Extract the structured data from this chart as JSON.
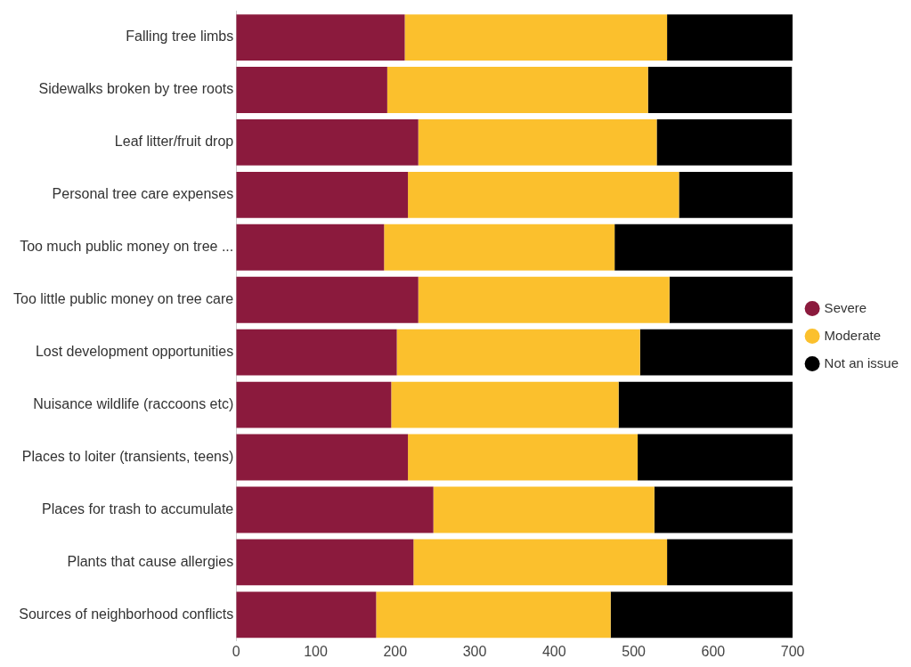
{
  "chart_data": {
    "type": "bar",
    "orientation": "horizontal",
    "stacked": true,
    "categories": [
      "Falling tree limbs",
      "Sidewalks broken by tree roots",
      "Leaf litter/fruit drop",
      "Personal tree care expenses",
      "Too much public money on tree ...",
      "Too little public money on tree care",
      "Lost development opportunities",
      "Nuisance wildlife (raccoons etc)",
      "Places to loiter (transients, teens)",
      "Places for trash to accumulate",
      "Plants that cause allergies",
      "Sources of neighborhood conflicts"
    ],
    "series": [
      {
        "name": "Severe",
        "color": "#8b1a3d",
        "values": [
          212,
          190,
          229,
          216,
          186,
          229,
          202,
          195,
          216,
          248,
          223,
          176
        ]
      },
      {
        "name": "Moderate",
        "color": "#fbc02d",
        "values": [
          330,
          328,
          300,
          341,
          290,
          316,
          306,
          286,
          289,
          278,
          319,
          295
        ]
      },
      {
        "name": "Not an issue",
        "color": "#000000",
        "values": [
          158,
          181,
          170,
          143,
          224,
          155,
          192,
          219,
          195,
          174,
          158,
          229
        ]
      }
    ],
    "xlim": [
      0,
      700
    ],
    "xticks": [
      0,
      100,
      200,
      300,
      400,
      500,
      600,
      700
    ],
    "grid": false,
    "legend": "right",
    "marker": "circle"
  }
}
